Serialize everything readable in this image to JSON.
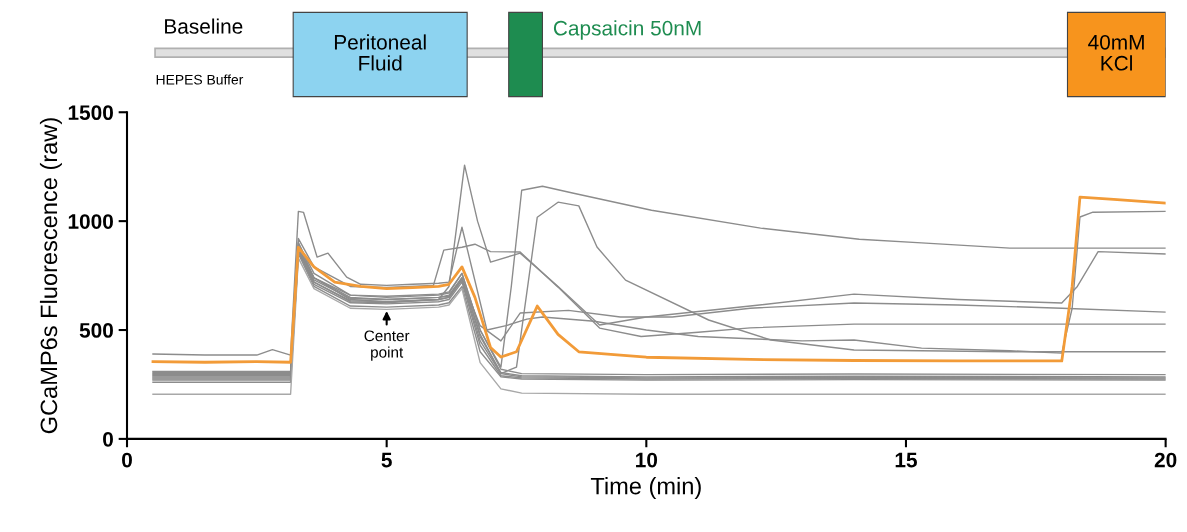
{
  "chart_data": {
    "type": "line",
    "xlabel": "Time (min)",
    "ylabel": "GCaMP6s Fluorescence (raw)",
    "xlim": [
      0,
      20
    ],
    "xticks": [
      0,
      5,
      10,
      15,
      20
    ],
    "ylim": [
      0,
      1500
    ],
    "yticks": [
      0,
      500,
      1000,
      1500
    ],
    "grid": false,
    "marker": "none",
    "line_style": "solid",
    "annotations": [
      "Baseline",
      "HEPES Buffer",
      "Peritoneal\nFluid",
      "Capsaicin 50nM",
      "40mM\nKCl",
      {
        "text": "Center\npoint",
        "x": 5,
        "y": 600
      }
    ],
    "series": [
      {
        "color": "#8c8c8c",
        "x": [
          0.5,
          1.5,
          2.5,
          2.8,
          3.15,
          3.3,
          3.4,
          3.66,
          3.87,
          4.23,
          4.5,
          5,
          5.5,
          6,
          6.2,
          6.45,
          6.93,
          7.3,
          7.7,
          8,
          9,
          10,
          11,
          12,
          13,
          14,
          15.3,
          17,
          18.0,
          18.2,
          18.35,
          18.6,
          20
        ],
        "values": [
          390,
          385,
          385,
          410,
          385,
          1045,
          1040,
          835,
          853,
          743,
          710,
          705,
          710,
          715,
          720,
          972,
          500,
          520,
          550,
          560,
          540,
          500,
          470,
          460,
          450,
          454,
          417,
          405,
          394,
          600,
          1019,
          1041,
          1045
        ]
      },
      {
        "color": "#8c8c8c",
        "x": [
          0.5,
          3.15,
          3.3,
          3.6,
          4.3,
          5,
          6,
          6.2,
          6.45,
          6.8,
          7.2,
          7.4,
          7.6,
          8.0,
          8.6,
          10.1,
          12.2,
          14.1,
          15.3,
          17,
          20
        ],
        "values": [
          300,
          300,
          900,
          760,
          660,
          650,
          660,
          670,
          760,
          500,
          330,
          700,
          1142,
          1160,
          1128,
          1050,
          968,
          917,
          900,
          876,
          876
        ]
      },
      {
        "color": "#8c8c8c",
        "x": [
          0.5,
          3.15,
          3.3,
          3.6,
          4.3,
          5,
          6,
          6.2,
          6.45,
          6.8,
          7.2,
          7.5,
          7.9,
          8.3,
          8.7,
          9.05,
          9.6,
          11.2,
          12.4,
          14,
          17,
          20
        ],
        "values": [
          290,
          290,
          880,
          740,
          650,
          640,
          650,
          655,
          740,
          480,
          300,
          330,
          1018,
          1087,
          1070,
          881,
          729,
          546,
          454,
          408,
          400,
          400
        ]
      },
      {
        "color": "#8c8c8c",
        "x": [
          0.5,
          3.15,
          3.3,
          3.6,
          4.3,
          5,
          5.9,
          6.1,
          6.45,
          6.7,
          7.0,
          7.57,
          8.3,
          9.1,
          9.9,
          11,
          12,
          14,
          20
        ],
        "values": [
          310,
          310,
          920,
          790,
          700,
          695,
          705,
          867,
          880,
          894,
          860,
          858,
          697,
          509,
          470,
          490,
          510,
          527,
          527
        ]
      },
      {
        "color": "#8c8c8c",
        "x": [
          0.5,
          3.15,
          3.3,
          3.6,
          4.3,
          5,
          6,
          6.2,
          6.45,
          6.8,
          7.2,
          7.57,
          8.5,
          9.5,
          10.5,
          12,
          14,
          16,
          18,
          20
        ],
        "values": [
          280,
          280,
          870,
          740,
          640,
          630,
          640,
          650,
          730,
          520,
          450,
          578,
          590,
          560,
          560,
          600,
          624,
          615,
          600,
          582
        ]
      },
      {
        "color": "#8c8c8c",
        "x": [
          0.5,
          3.15,
          3.3,
          3.6,
          4.3,
          5,
          6,
          6.2,
          6.5,
          6.75,
          7.0,
          7.57,
          8.3,
          9.1,
          10,
          12,
          14,
          16,
          18,
          18.3,
          18.7,
          20
        ],
        "values": [
          270,
          270,
          860,
          720,
          630,
          625,
          640,
          700,
          1257,
          1000,
          812,
          853,
          700,
          523,
          560,
          610,
          665,
          640,
          624,
          700,
          860,
          849
        ]
      },
      {
        "color": "#8c8c8c",
        "x": [
          0.5,
          3.15,
          3.3,
          3.6,
          4.3,
          5,
          6,
          6.2,
          6.45,
          6.8,
          7.2,
          7.6,
          10,
          14,
          20
        ],
        "values": [
          305,
          305,
          900,
          740,
          660,
          655,
          665,
          675,
          760,
          500,
          320,
          300,
          295,
          298,
          295
        ]
      },
      {
        "color": "#8c8c8c",
        "x": [
          0.5,
          3.15,
          3.3,
          3.6,
          4.3,
          5,
          6,
          6.2,
          6.45,
          6.8,
          7.2,
          7.6,
          10,
          14,
          20
        ],
        "values": [
          295,
          295,
          880,
          730,
          645,
          640,
          650,
          660,
          740,
          470,
          305,
          290,
          285,
          288,
          285
        ]
      },
      {
        "color": "#8c8c8c",
        "x": [
          0.5,
          3.15,
          3.3,
          3.6,
          4.3,
          5,
          6,
          6.2,
          6.45,
          6.8,
          7.2,
          7.6,
          10,
          14,
          20
        ],
        "values": [
          285,
          285,
          870,
          720,
          635,
          630,
          640,
          650,
          730,
          450,
          300,
          285,
          280,
          282,
          280
        ]
      },
      {
        "color": "#8c8c8c",
        "x": [
          0.5,
          3.15,
          3.3,
          3.6,
          4.3,
          5,
          6,
          6.2,
          6.45,
          6.8,
          7.2,
          7.6,
          10,
          14,
          20
        ],
        "values": [
          275,
          275,
          860,
          710,
          625,
          620,
          630,
          640,
          720,
          430,
          290,
          280,
          275,
          278,
          275
        ]
      },
      {
        "color": "#8c8c8c",
        "x": [
          0.5,
          3.15,
          3.3,
          3.6,
          4.3,
          5,
          6,
          6.2,
          6.45,
          6.8,
          7.2,
          7.6,
          10,
          14,
          20
        ],
        "values": [
          260,
          260,
          850,
          700,
          610,
          605,
          615,
          625,
          700,
          400,
          285,
          275,
          270,
          272,
          270
        ]
      },
      {
        "color": "#a8a8a8",
        "x": [
          0.5,
          3.15,
          3.3,
          3.6,
          4.3,
          5,
          6,
          6.2,
          6.45,
          6.8,
          7.2,
          7.6,
          10,
          14,
          20
        ],
        "values": [
          205,
          205,
          830,
          690,
          600,
          595,
          605,
          615,
          690,
          350,
          230,
          210,
          205,
          205,
          205
        ]
      },
      {
        "color": "#f29b38",
        "x": [
          0.5,
          1.5,
          2.5,
          3.15,
          3.3,
          3.6,
          4.0,
          4.5,
          5.0,
          5.5,
          6.0,
          6.2,
          6.45,
          6.7,
          7.0,
          7.2,
          7.5,
          7.9,
          8.3,
          8.7,
          9.5,
          10,
          12,
          14,
          16,
          18.0,
          18.2,
          18.35,
          19,
          20
        ],
        "values": [
          355,
          352,
          355,
          352,
          880,
          790,
          720,
          700,
          690,
          695,
          700,
          710,
          790,
          650,
          420,
          376,
          400,
          610,
          480,
          400,
          385,
          375,
          365,
          360,
          358,
          358,
          700,
          1110,
          1100,
          1083
        ]
      }
    ]
  }
}
